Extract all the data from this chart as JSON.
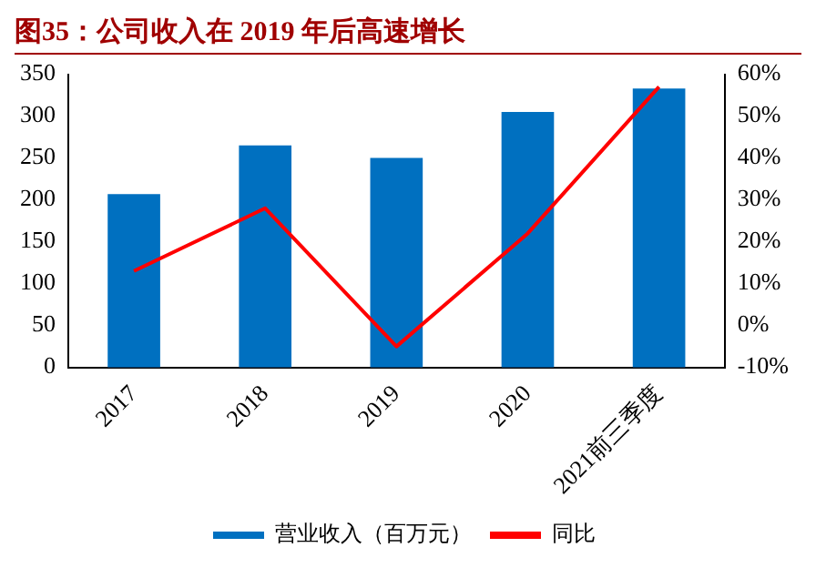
{
  "chart_data": {
    "type": "bar",
    "title": "图35：公司收入在 2019 年后高速增长",
    "categories": [
      "2017",
      "2018",
      "2019",
      "2020",
      "2021前三季度"
    ],
    "series": [
      {
        "name": "营业收入（百万元）",
        "color": "#0070c0",
        "values": [
          207,
          265,
          250,
          305,
          333
        ]
      },
      {
        "name": "同比",
        "type": "line",
        "axis": "y2",
        "color": "#ff0000",
        "values": [
          13,
          28,
          -5,
          22,
          57
        ]
      }
    ],
    "ylim": [
      0,
      350
    ],
    "yticks": [
      0,
      50,
      100,
      150,
      200,
      250,
      300,
      350
    ],
    "y2lim": [
      -10,
      60
    ],
    "y2ticks": [
      {
        "value": -10,
        "label": "-10%"
      },
      {
        "value": 0,
        "label": "0%"
      },
      {
        "value": 10,
        "label": "10%"
      },
      {
        "value": 20,
        "label": "20%"
      },
      {
        "value": 30,
        "label": "30%"
      },
      {
        "value": 40,
        "label": "40%"
      },
      {
        "value": 50,
        "label": "50%"
      },
      {
        "value": 60,
        "label": "60%"
      }
    ],
    "grid": false,
    "legend": "bottom",
    "marker": "none",
    "line_style": "solid"
  }
}
